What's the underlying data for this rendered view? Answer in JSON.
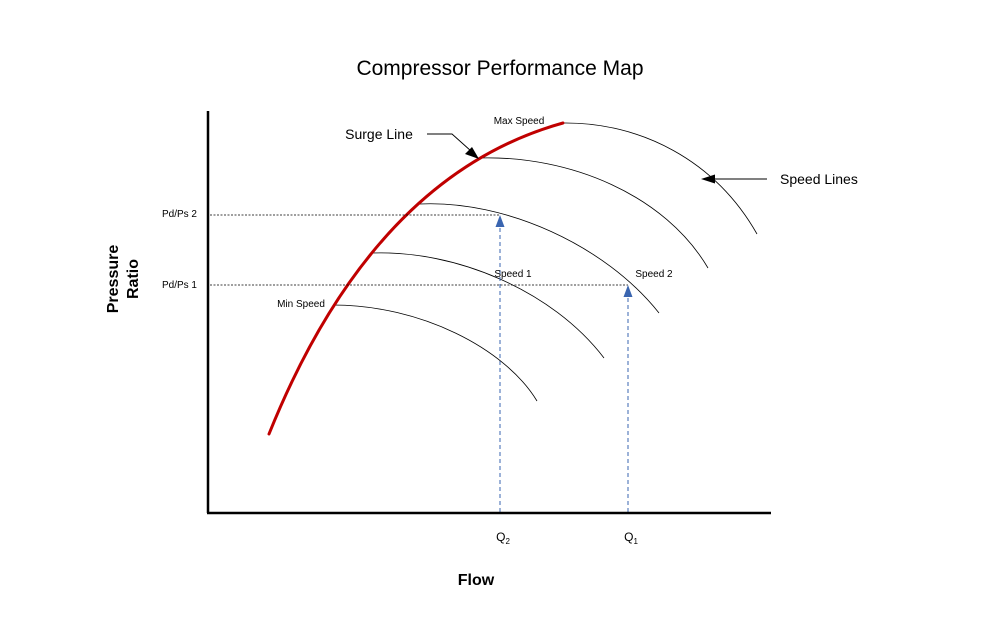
{
  "title": "Compressor Performance Map",
  "axes": {
    "x_label": "Flow",
    "y_label_line1": "Pressure",
    "y_label_line2": "Ratio",
    "y_ticks": [
      {
        "label": "Pd/Ps 2"
      },
      {
        "label": "Pd/Ps 1"
      }
    ],
    "x_ticks": [
      {
        "main": "Q",
        "sub": "2"
      },
      {
        "main": "Q",
        "sub": "1"
      }
    ]
  },
  "speed_line_labels": {
    "max": "Max Speed",
    "min": "Min Speed",
    "speed1": "Speed 1",
    "speed2": "Speed 2"
  },
  "callouts": {
    "surge_line": "Surge Line",
    "speed_lines": "Speed Lines"
  },
  "colors": {
    "surge_line": "#c00000",
    "operating_arrows": "#3a65b0",
    "curves": "#000000"
  }
}
